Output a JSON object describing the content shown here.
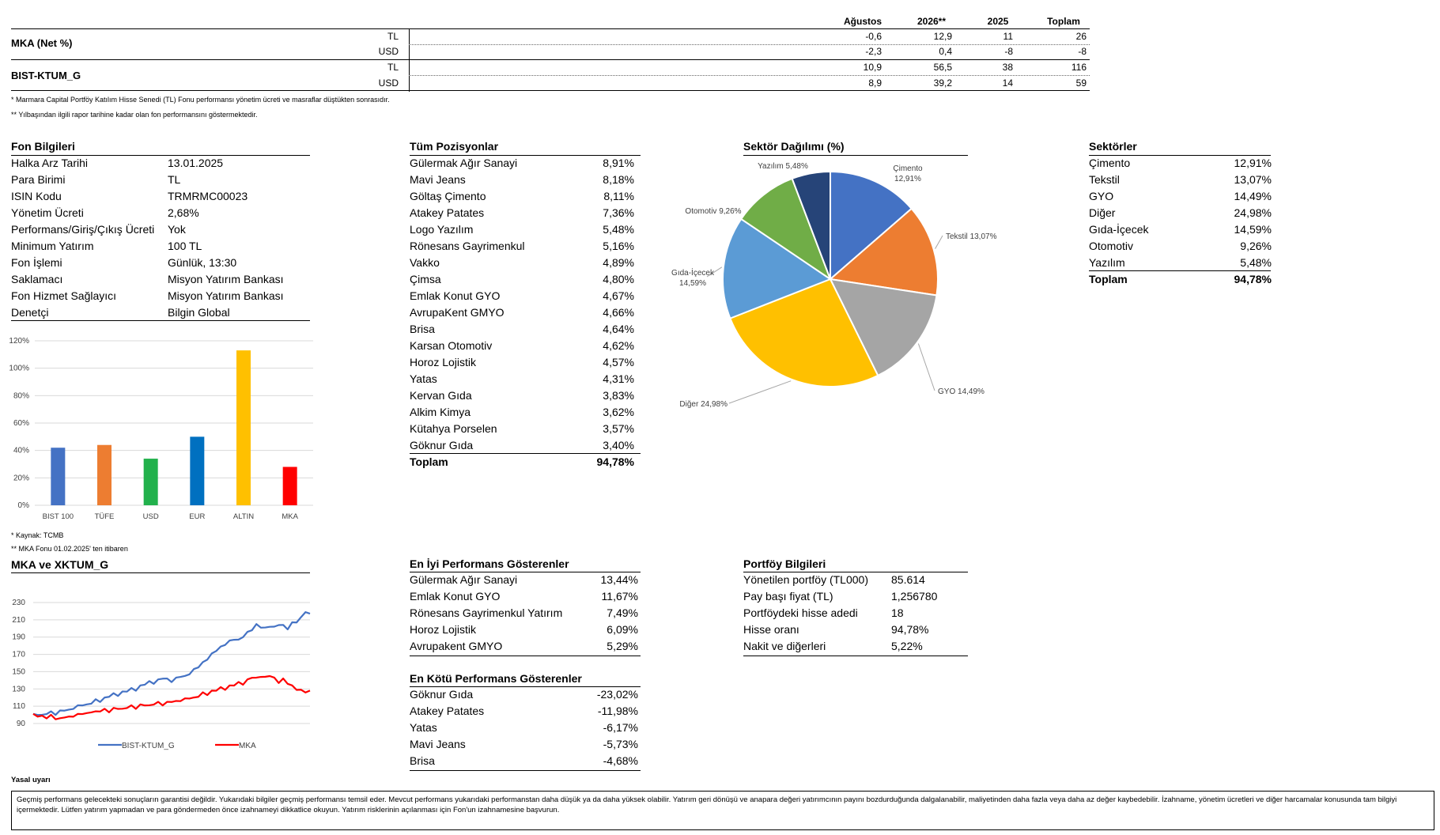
{
  "performance": {
    "headers": [
      "Ağustos",
      "2026**",
      "2025",
      "Toplam"
    ],
    "rows": [
      {
        "name": "MKA (Net %)",
        "cur": "TL",
        "values": [
          "-0,6",
          "12,9",
          "11",
          "26"
        ]
      },
      {
        "name": "",
        "cur": "USD",
        "values": [
          "-2,3",
          "0,4",
          "-8",
          "-8"
        ]
      },
      {
        "name": "BIST-KTUM_G",
        "cur": "TL",
        "values": [
          "10,9",
          "56,5",
          "38",
          "116"
        ]
      },
      {
        "name": "",
        "cur": "USD",
        "values": [
          "8,9",
          "39,2",
          "14",
          "59"
        ]
      }
    ],
    "notes": [
      "* Marmara Capital Portföy Katılım Hisse Senedi (TL) Fonu performansı yönetim ücreti ve masraflar düştükten sonrasıdır.",
      "** Yılbaşından ilgili rapor tarihine kadar olan fon performansını göstermektedir."
    ]
  },
  "fund_info": {
    "title": "Fon Bilgileri",
    "rows": [
      {
        "label": "Halka Arz Tarihi",
        "value": "13.01.2025"
      },
      {
        "label": "Para Birimi",
        "value": "TL"
      },
      {
        "label": "ISIN Kodu",
        "value": "TRMRMC00023"
      },
      {
        "label": "Yönetim Ücreti",
        "value": "2,68%"
      },
      {
        "label": "Performans/Giriş/Çıkış Ücreti",
        "value": "Yok"
      },
      {
        "label": "Minimum Yatırım",
        "value": "100 TL"
      },
      {
        "label": "Fon İşlemi",
        "value": "Günlük, 13:30"
      },
      {
        "label": "Saklamacı",
        "value": "Misyon Yatırım Bankası"
      },
      {
        "label": "Fon Hizmet Sağlayıcı",
        "value": "Misyon Yatırım Bankası"
      },
      {
        "label": "Denetçi",
        "value": "Bilgin Global"
      }
    ]
  },
  "positions": {
    "title": "Tüm Pozisyonlar",
    "rows": [
      {
        "label": "Gülermak Ağır Sanayi",
        "value": "8,91%"
      },
      {
        "label": "Mavi Jeans",
        "value": "8,18%"
      },
      {
        "label": "Göltaş Çimento",
        "value": "8,11%"
      },
      {
        "label": "Atakey Patates",
        "value": "7,36%"
      },
      {
        "label": "Logo Yazılım",
        "value": "5,48%"
      },
      {
        "label": "Rönesans Gayrimenkul",
        "value": "5,16%"
      },
      {
        "label": "Vakko",
        "value": "4,89%"
      },
      {
        "label": "Çimsa",
        "value": "4,80%"
      },
      {
        "label": "Emlak Konut GYO",
        "value": "4,67%"
      },
      {
        "label": "AvrupaKent GMYO",
        "value": "4,66%"
      },
      {
        "label": "Brisa",
        "value": "4,64%"
      },
      {
        "label": "Karsan Otomotiv",
        "value": "4,62%"
      },
      {
        "label": "Horoz Lojistik",
        "value": "4,57%"
      },
      {
        "label": "Yatas",
        "value": "4,31%"
      },
      {
        "label": "Kervan Gıda",
        "value": "3,83%"
      },
      {
        "label": "Alkim Kimya",
        "value": "3,62%"
      },
      {
        "label": "Kütahya Porselen",
        "value": "3,57%"
      },
      {
        "label": "Göknur Gıda",
        "value": "3,40%"
      }
    ],
    "total_label": "Toplam",
    "total_value": "94,78%"
  },
  "sector_table": {
    "title": "Sektörler",
    "rows": [
      {
        "label": "Çimento",
        "value": "12,91%"
      },
      {
        "label": "Tekstil",
        "value": "13,07%"
      },
      {
        "label": "GYO",
        "value": "14,49%"
      },
      {
        "label": "Diğer",
        "value": "24,98%"
      },
      {
        "label": "Gıda-İçecek",
        "value": "14,59%"
      },
      {
        "label": "Otomotiv",
        "value": "9,26%"
      },
      {
        "label": "Yazılım",
        "value": "5,48%"
      }
    ],
    "total_label": "Toplam",
    "total_value": "94,78%"
  },
  "best": {
    "title": "En İyi Performans Gösterenler",
    "rows": [
      {
        "label": "Gülermak Ağır Sanayi",
        "value": "13,44%"
      },
      {
        "label": "Emlak Konut GYO",
        "value": "11,67%"
      },
      {
        "label": "Rönesans Gayrimenkul Yatırım",
        "value": "7,49%"
      },
      {
        "label": "Horoz Lojistik",
        "value": "6,09%"
      },
      {
        "label": "Avrupakent GMYO",
        "value": "5,29%"
      }
    ]
  },
  "worst": {
    "title": "En Kötü Performans Gösterenler",
    "rows": [
      {
        "label": "Göknur Gıda",
        "value": "-23,02%"
      },
      {
        "label": "Atakey Patates",
        "value": "-11,98%"
      },
      {
        "label": "Yatas",
        "value": "-6,17%"
      },
      {
        "label": "Mavi Jeans",
        "value": "-5,73%"
      },
      {
        "label": "Brisa",
        "value": "-4,68%"
      }
    ]
  },
  "portfolio": {
    "title": "Portföy Bilgileri",
    "rows": [
      {
        "label": "Yönetilen portföy (TL000)",
        "value": "85.614"
      },
      {
        "label": "Pay başı fiyat (TL)",
        "value": "1,256780"
      },
      {
        "label": "Portföydeki hisse adedi",
        "value": "18"
      },
      {
        "label": "Hisse oranı",
        "value": "94,78%"
      },
      {
        "label": "Nakit ve diğerleri",
        "value": "5,22%"
      }
    ]
  },
  "bar_notes": [
    "* Kaynak: TCMB",
    "** MKA Fonu 01.02.2025' ten itibaren"
  ],
  "line_title": "MKA ve XKTUM_G",
  "legal_title": "Yasal uyarı",
  "legal_text": "Geçmiş performans gelecekteki sonuçların garantisi değildir. Yukarıdaki bilgiler geçmiş performansı temsil eder. Mevcut performans yukarıdaki performanstan daha düşük ya da daha yüksek olabilir. Yatırım geri dönüşü ve anapara değeri yatırımcının payını bozdurduğunda dalgalanabilir, maliyetinden daha fazla veya daha az değer kaybedebilir. İzahname, yönetim ücretleri ve diğer harcamalar konusunda tam bilgiyi içermektedir. Lütfen yatırım yapmadan ve para göndermeden önce izahnameyi dikkatlice okuyun.  Yatırım risklerinin açılanması için Fon'un izahnamesine başvurun.",
  "chart_data": [
    {
      "type": "bar",
      "categories": [
        "BIST 100",
        "TÜFE",
        "USD",
        "EUR",
        "ALTIN",
        "MKA"
      ],
      "values": [
        42,
        44,
        34,
        50,
        113,
        28
      ],
      "ylim": [
        0,
        120
      ],
      "yticks": [
        "0%",
        "20%",
        "40%",
        "60%",
        "80%",
        "100%",
        "120%"
      ],
      "colors": [
        "#4472C4",
        "#ED7D31",
        "#22B14C",
        "#0070C0",
        "#FFC000",
        "#FF0000"
      ]
    },
    {
      "type": "pie",
      "title": "Sektör Dağılımı (%)",
      "slices": [
        {
          "label": "Çimento",
          "value": 12.91,
          "text": "12,91%",
          "color": "#4472C4"
        },
        {
          "label": "Tekstil",
          "value": 13.07,
          "text": "13,07%",
          "color": "#ED7D31"
        },
        {
          "label": "GYO",
          "value": 14.49,
          "text": "14,49%",
          "color": "#A5A5A5"
        },
        {
          "label": "Diğer",
          "value": 24.98,
          "text": "24,98%",
          "color": "#FFC000"
        },
        {
          "label": "Gıda-İçecek",
          "value": 14.59,
          "text": "14,59%",
          "color": "#5B9BD5"
        },
        {
          "label": "Otomotiv",
          "value": 9.26,
          "text": "9,26%",
          "color": "#70AD47"
        },
        {
          "label": "Yazılım",
          "value": 5.48,
          "text": "5,48%",
          "color": "#264478"
        }
      ]
    },
    {
      "type": "line",
      "ylim": [
        90,
        230
      ],
      "yticks": [
        90,
        110,
        130,
        150,
        170,
        190,
        210,
        230
      ],
      "series": [
        {
          "name": "BIST-KTUM_G",
          "color": "#4472C4",
          "values": [
            100,
            101,
            99,
            102,
            103,
            101,
            104,
            106,
            105,
            108,
            110,
            112,
            111,
            114,
            117,
            116,
            119,
            122,
            124,
            123,
            126,
            128,
            130,
            129,
            133,
            136,
            138,
            137,
            140,
            143,
            141,
            139,
            142,
            145,
            144,
            148,
            152,
            156,
            160,
            165,
            170,
            175,
            178,
            182,
            185,
            188,
            186,
            191,
            195,
            199,
            204,
            202,
            200,
            203,
            201,
            205,
            203,
            200,
            206,
            208,
            212,
            220,
            216
          ]
        },
        {
          "name": "MKA",
          "color": "#FF0000",
          "values": [
            100,
            99,
            98,
            97,
            99,
            96,
            95,
            98,
            97,
            99,
            100,
            102,
            101,
            104,
            103,
            105,
            106,
            104,
            107,
            108,
            106,
            109,
            110,
            108,
            111,
            112,
            110,
            113,
            114,
            112,
            114,
            116,
            115,
            117,
            118,
            120,
            119,
            122,
            125,
            124,
            127,
            129,
            131,
            130,
            133,
            135,
            137,
            136,
            140,
            144,
            142,
            145,
            143,
            146,
            142,
            138,
            141,
            137,
            133,
            130,
            128,
            127,
            127
          ]
        }
      ]
    }
  ]
}
